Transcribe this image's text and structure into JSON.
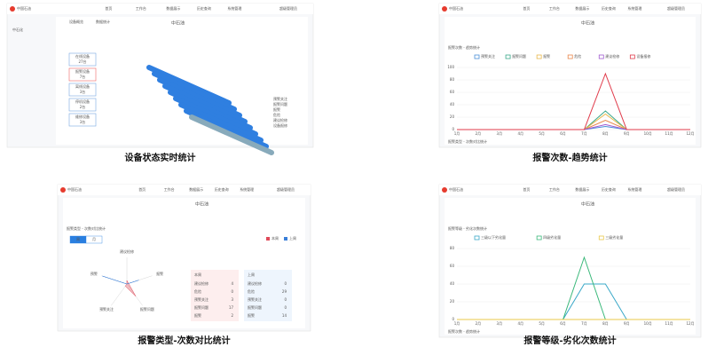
{
  "header": {
    "logo": "中国石油",
    "nav": [
      "首页",
      "工作台",
      "数据展示",
      "历史查询",
      "系统管理"
    ],
    "user": "超级管理员"
  },
  "panels": [
    {
      "caption": "设备状态实时统计",
      "title": "中石油",
      "sidebar": "中石化",
      "tabs": [
        "设备概览",
        "数据统计"
      ],
      "cards": [
        {
          "label": "在线设备",
          "value": "27台"
        },
        {
          "label": "报警设备",
          "value": "7台"
        },
        {
          "label": "离线设备",
          "value": "3台"
        },
        {
          "label": "停机设备",
          "value": "2台"
        },
        {
          "label": "维修设备",
          "value": "3台"
        }
      ],
      "legend": [
        "预警关注",
        "报警问题",
        "报警",
        "危险",
        "建议检修",
        "设备报修"
      ]
    },
    {
      "caption": "报警次数-趋势统计",
      "title": "中石油",
      "section": "报警次数 - 趋势统计",
      "footer": "报警类型 - 次数对比统计",
      "chart": {
        "type": "line",
        "categories": [
          "1月",
          "2月",
          "3月",
          "4月",
          "5月",
          "6月",
          "7月",
          "8月",
          "9月",
          "10月",
          "11月",
          "12月"
        ],
        "ylim": [
          0,
          100
        ],
        "yticks": [
          0,
          20,
          40,
          60,
          80,
          100
        ],
        "series": [
          {
            "name": "预警关注",
            "color": "#4a8fd8",
            "values": [
              0,
              0,
              0,
              0,
              0,
              0,
              0,
              5,
              0,
              0,
              0,
              0
            ]
          },
          {
            "name": "报警问题",
            "color": "#3aa88a",
            "values": [
              0,
              0,
              0,
              0,
              0,
              0,
              0,
              30,
              0,
              0,
              0,
              0
            ]
          },
          {
            "name": "报警",
            "color": "#e8b84a",
            "values": [
              0,
              0,
              0,
              0,
              0,
              0,
              0,
              25,
              0,
              0,
              0,
              0
            ]
          },
          {
            "name": "危险",
            "color": "#e8864a",
            "values": [
              0,
              0,
              0,
              0,
              0,
              0,
              0,
              15,
              0,
              0,
              0,
              0
            ]
          },
          {
            "name": "建议检修",
            "color": "#a05ad0",
            "values": [
              0,
              0,
              0,
              0,
              0,
              0,
              0,
              8,
              0,
              0,
              0,
              0
            ]
          },
          {
            "name": "设备报修",
            "color": "#e03a4a",
            "values": [
              0,
              0,
              0,
              0,
              0,
              0,
              0,
              90,
              0,
              0,
              0,
              0
            ]
          }
        ]
      }
    },
    {
      "caption": "报警类型-次数对比统计",
      "title": "中石油",
      "section": "报警类型 - 次数对比统计",
      "buttons": [
        "周",
        "月"
      ],
      "radar": {
        "type": "radar",
        "axes": [
          "建议检修",
          "报警",
          "报警问题",
          "预警关注",
          "预警"
        ],
        "max": 30,
        "series": [
          {
            "name": "本周",
            "color": "#e04a5a",
            "values": [
              4,
              2,
              17,
              3,
              0
            ]
          },
          {
            "name": "上周",
            "color": "#3a7fd8",
            "values": [
              0,
              14,
              0,
              0,
              29
            ]
          }
        ]
      },
      "tables": [
        {
          "title": "本周",
          "rows": [
            [
              "建议检修",
              "4"
            ],
            [
              "危险",
              "0"
            ],
            [
              "预警关注",
              "3"
            ],
            [
              "报警问题",
              "17"
            ],
            [
              "报警",
              "2"
            ]
          ]
        },
        {
          "title": "上周",
          "rows": [
            [
              "建议检修",
              "0"
            ],
            [
              "危险",
              "29"
            ],
            [
              "预警关注",
              "0"
            ],
            [
              "报警问题",
              "0"
            ],
            [
              "报警",
              "14"
            ]
          ]
        }
      ]
    },
    {
      "caption": "报警等级-劣化次数统计",
      "title": "中石油",
      "section": "报警等级 - 劣化次数统计",
      "footer": "报警次数 - 趋势统计",
      "chart": {
        "type": "line",
        "categories": [
          "1月",
          "2月",
          "3月",
          "4月",
          "5月",
          "6月",
          "7月",
          "8月",
          "9月",
          "10月",
          "11月",
          "12月"
        ],
        "ylim": [
          0,
          80
        ],
        "yticks": [
          0,
          20,
          40,
          60,
          80
        ],
        "series": [
          {
            "name": "三级以下劣化量",
            "color": "#3aa8c8",
            "values": [
              0,
              0,
              0,
              0,
              0,
              0,
              40,
              40,
              0,
              0,
              0,
              0
            ]
          },
          {
            "name": "四级劣化量",
            "color": "#3ab87a",
            "values": [
              0,
              0,
              0,
              0,
              0,
              0,
              70,
              0,
              0,
              0,
              0,
              0
            ]
          },
          {
            "name": "三级劣化量",
            "color": "#e8c84a",
            "values": [
              0,
              0,
              0,
              0,
              0,
              0,
              0,
              0,
              0,
              0,
              0,
              0
            ]
          }
        ]
      }
    }
  ]
}
